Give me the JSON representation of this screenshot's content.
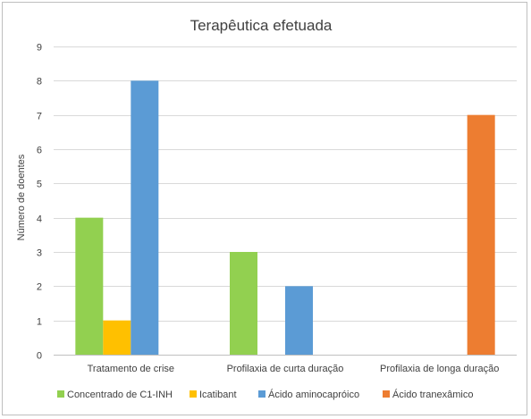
{
  "chart_data": {
    "type": "bar",
    "title": "Terapêutica efetuada",
    "xlabel": "",
    "ylabel": "Número de doentes",
    "ylim": [
      0,
      9
    ],
    "yticks": [
      0,
      1,
      2,
      3,
      4,
      5,
      6,
      7,
      8,
      9
    ],
    "grid": true,
    "legend_position": "bottom",
    "categories": [
      "Tratamento de crise",
      "Profilaxia de curta duração",
      "Profilaxia de longa duração"
    ],
    "series": [
      {
        "name": "Concentrado de C1-INH",
        "color": "#92d050",
        "values": [
          4,
          3,
          0
        ]
      },
      {
        "name": "Icatibant",
        "color": "#ffc000",
        "values": [
          1,
          0,
          0
        ]
      },
      {
        "name": "Ácido aminocapróico",
        "color": "#5b9bd5",
        "values": [
          8,
          2,
          0
        ]
      },
      {
        "name": "Ácido tranexâmico",
        "color": "#ed7d31",
        "values": [
          0,
          0,
          7
        ]
      }
    ]
  }
}
